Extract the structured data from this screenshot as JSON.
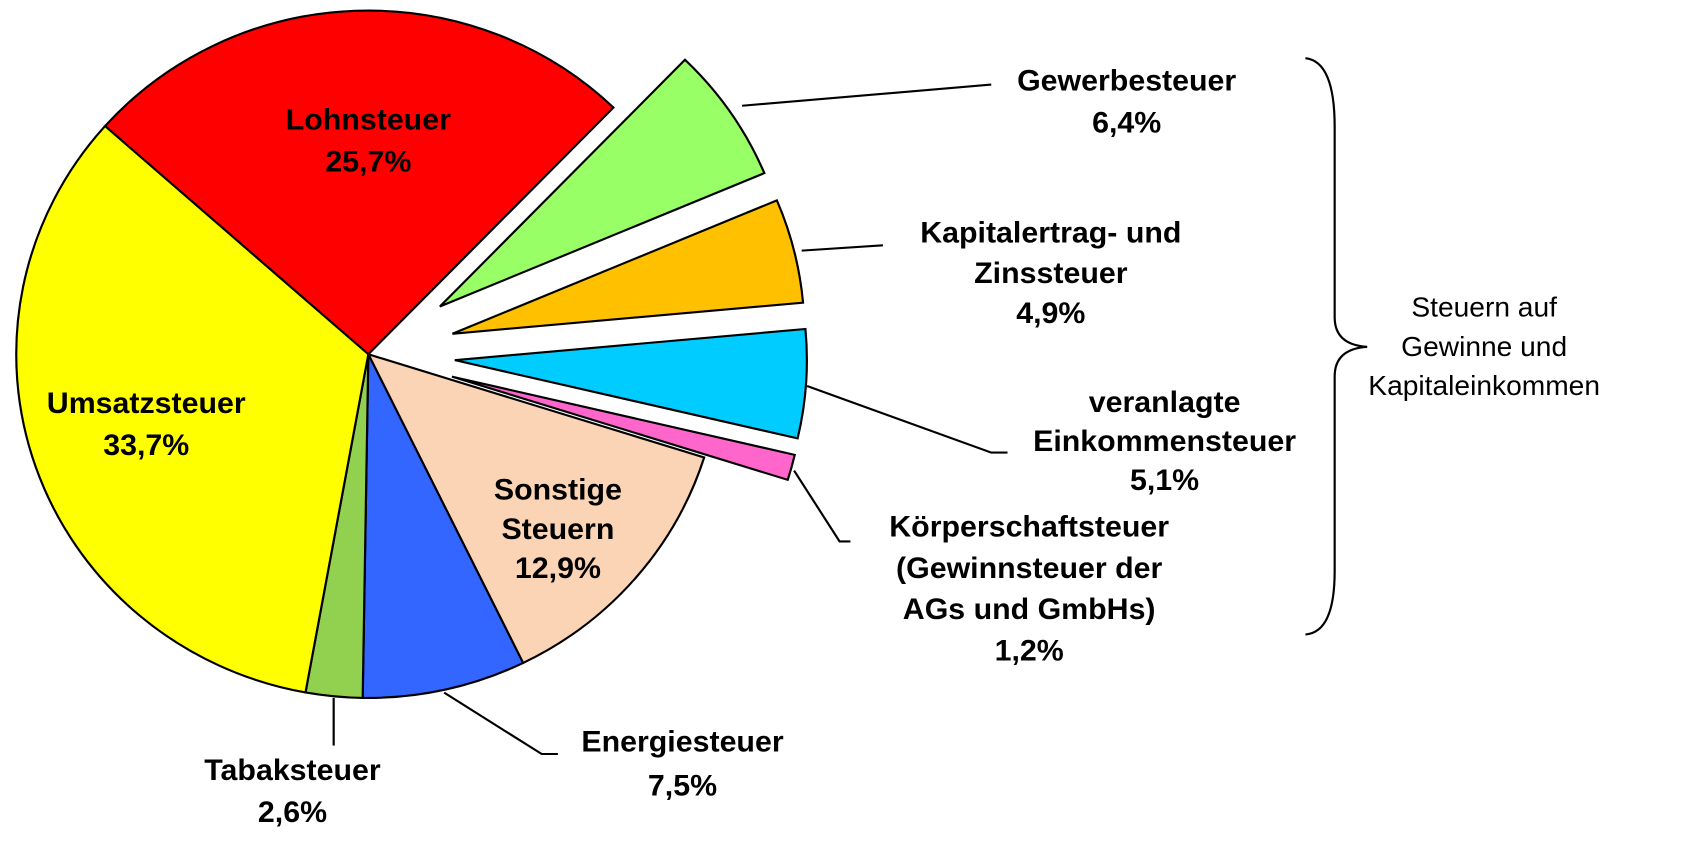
{
  "chart_data": {
    "type": "pie",
    "categories": [
      "Lohnsteuer",
      "Gewerbesteuer",
      "Kapitalertrag- und\nZinssteuer",
      "veranlagte\nEinkommensteuer",
      "Körperschaftsteuer\n(Gewinnsteuer der\nAGs und GmbHs)",
      "Sonstige\nSteuern",
      "Energiesteuer",
      "Tabaksteuer",
      "Umsatzsteuer"
    ],
    "values": [
      25.7,
      6.4,
      4.9,
      5.1,
      1.2,
      12.9,
      7.5,
      2.6,
      33.7
    ],
    "value_labels": [
      "25,7%",
      "6,4%",
      "4,9%",
      "5,1%",
      "1,2%",
      "12,9%",
      "7,5%",
      "2,6%",
      "33,7%"
    ],
    "colors": [
      "#ff0000",
      "#99ff66",
      "#ffc000",
      "#00ccff",
      "#ff66cc",
      "#fad4b4",
      "#3366ff",
      "#92d050",
      "#ffff00"
    ],
    "explode": [
      false,
      true,
      true,
      true,
      true,
      false,
      false,
      false,
      false
    ],
    "annotation": "Steuern auf\nGewinne und\nKapitaleinkommen"
  }
}
